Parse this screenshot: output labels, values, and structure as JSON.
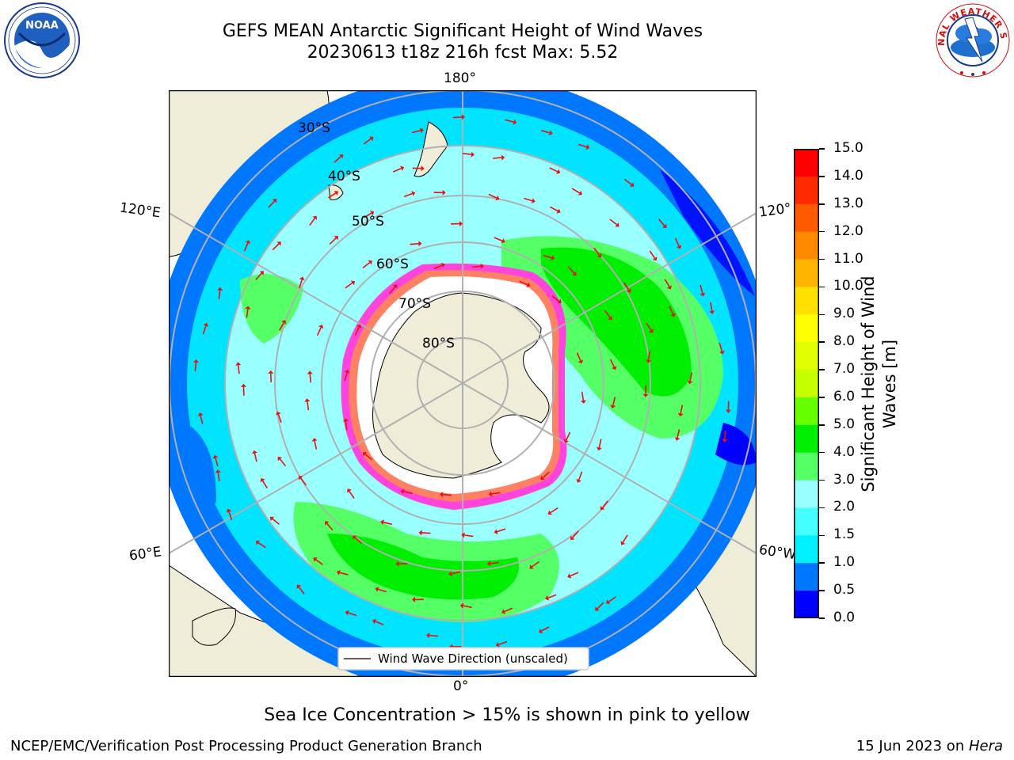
{
  "title": {
    "line1": "GEFS MEAN Antarctic Significant Height of Wind Waves",
    "line2": "20230613 t18z 216h fcst   Max: 5.52"
  },
  "map": {
    "longitude_labels": {
      "top": "180°",
      "bottom": "0°",
      "upper_left": "120°E",
      "upper_right": "120°",
      "lower_left": "60°E",
      "lower_right": "60°W"
    },
    "latitude_labels": [
      "30°S",
      "40°S",
      "50°S",
      "60°S",
      "70°S",
      "80°S"
    ],
    "legend_label": "Wind Wave Direction (unscaled)",
    "colors": {
      "land": "#efedd8",
      "ice_interior": "#ffffff",
      "sea_ice_edge": "#ff44dd",
      "graticule": "#b0b0b0",
      "arrow": "#e81010"
    }
  },
  "colorbar": {
    "label": "Significant Height of Wind Waves [m]",
    "label_line1": "Significant Height of Wind",
    "label_line2": "Waves [m]",
    "ticks": [
      "15.0",
      "14.0",
      "13.0",
      "12.0",
      "11.0",
      "10.0",
      "9.0",
      "8.0",
      "7.0",
      "6.0",
      "5.0",
      "4.0",
      "3.0",
      "2.0",
      "1.5",
      "1.0",
      "0.5",
      "0.0"
    ],
    "bands": [
      {
        "from": 14.0,
        "to": 15.0,
        "color": "#ff0000"
      },
      {
        "from": 13.0,
        "to": 14.0,
        "color": "#ff2a00"
      },
      {
        "from": 12.0,
        "to": 13.0,
        "color": "#ff5a00"
      },
      {
        "from": 11.0,
        "to": 12.0,
        "color": "#ff8a00"
      },
      {
        "from": 10.0,
        "to": 11.0,
        "color": "#ffb400"
      },
      {
        "from": 9.0,
        "to": 10.0,
        "color": "#ffe000"
      },
      {
        "from": 8.0,
        "to": 9.0,
        "color": "#fdff00"
      },
      {
        "from": 7.0,
        "to": 8.0,
        "color": "#e1ff00"
      },
      {
        "from": 6.0,
        "to": 7.0,
        "color": "#c6ff00"
      },
      {
        "from": 5.0,
        "to": 6.0,
        "color": "#66ff00"
      },
      {
        "from": 4.0,
        "to": 5.0,
        "color": "#00ee00"
      },
      {
        "from": 3.0,
        "to": 4.0,
        "color": "#55ff66"
      },
      {
        "from": 2.0,
        "to": 3.0,
        "color": "#99ffff"
      },
      {
        "from": 1.5,
        "to": 2.0,
        "color": "#44ffff"
      },
      {
        "from": 1.0,
        "to": 1.5,
        "color": "#00f0ff"
      },
      {
        "from": 0.5,
        "to": 1.0,
        "color": "#0077ff"
      },
      {
        "from": 0.0,
        "to": 0.5,
        "color": "#0000ff"
      }
    ]
  },
  "logos": {
    "left": "NOAA",
    "right": "NATIONAL WEATHER SERVICE"
  },
  "note": "Sea Ice Concentration > 15% is shown in pink to yellow",
  "footer": {
    "left": "NCEP/EMC/Verification Post Processing Product Generation Branch",
    "right_prefix": "15 Jun 2023 on ",
    "right_host": "Hera"
  }
}
